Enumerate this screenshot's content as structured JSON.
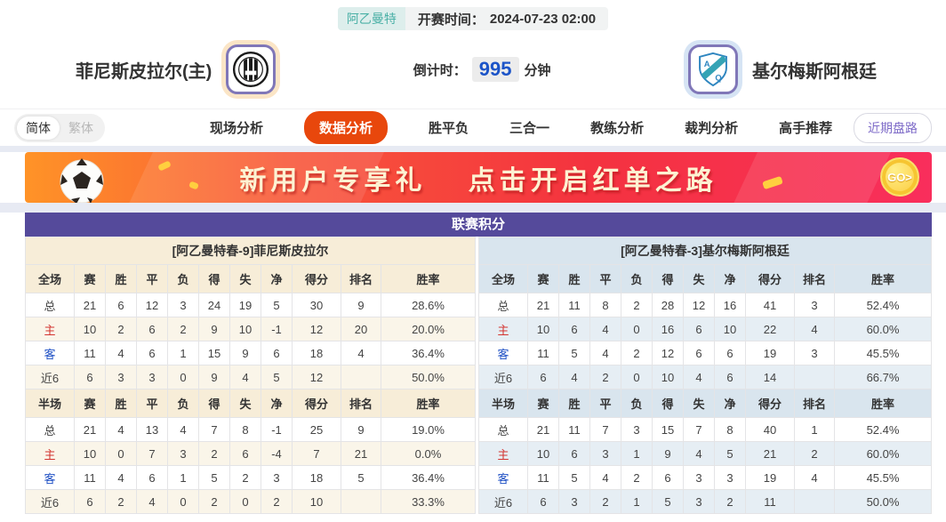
{
  "meta": {
    "league_badge": "阿乙曼特",
    "kickoff_label": "开赛时间：",
    "kickoff_time": "2024-07-23 02:00",
    "countdown_label": "倒计时：",
    "countdown_value": "995",
    "countdown_unit": "分钟"
  },
  "teams": {
    "home": {
      "name": "菲尼斯皮拉尔(主)"
    },
    "away": {
      "name": "基尔梅斯阿根廷"
    }
  },
  "nav": {
    "lang_simplified": "简体",
    "lang_traditional": "繁体",
    "tabs": [
      "现场分析",
      "数据分析",
      "胜平负",
      "三合一",
      "教练分析",
      "裁判分析",
      "高手推荐"
    ],
    "active_index": 1,
    "recent_button": "近期盘路"
  },
  "banner": {
    "headline_1": "新用户专享礼",
    "headline_2": "点击开启红单之路",
    "go_label": "GO>"
  },
  "league_table": {
    "title": "联赛积分",
    "panels": [
      {
        "side": "home",
        "header": "[阿乙曼特春-9]菲尼斯皮拉尔",
        "sections": [
          {
            "label": "全场",
            "columns": [
              "赛",
              "胜",
              "平",
              "负",
              "得",
              "失",
              "净",
              "得分",
              "排名",
              "胜率"
            ],
            "rows": [
              {
                "label": "总",
                "values": [
                  "21",
                  "6",
                  "12",
                  "3",
                  "24",
                  "19",
                  "5",
                  "30",
                  "9",
                  "28.6%"
                ]
              },
              {
                "label": "主",
                "values": [
                  "10",
                  "2",
                  "6",
                  "2",
                  "9",
                  "10",
                  "-1",
                  "12",
                  "20",
                  "20.0%"
                ]
              },
              {
                "label": "客",
                "values": [
                  "11",
                  "4",
                  "6",
                  "1",
                  "15",
                  "9",
                  "6",
                  "18",
                  "4",
                  "36.4%"
                ]
              },
              {
                "label": "近6",
                "values": [
                  "6",
                  "3",
                  "3",
                  "0",
                  "9",
                  "4",
                  "5",
                  "12",
                  "",
                  "50.0%"
                ]
              }
            ]
          },
          {
            "label": "半场",
            "columns": [
              "赛",
              "胜",
              "平",
              "负",
              "得",
              "失",
              "净",
              "得分",
              "排名",
              "胜率"
            ],
            "rows": [
              {
                "label": "总",
                "values": [
                  "21",
                  "4",
                  "13",
                  "4",
                  "7",
                  "8",
                  "-1",
                  "25",
                  "9",
                  "19.0%"
                ]
              },
              {
                "label": "主",
                "values": [
                  "10",
                  "0",
                  "7",
                  "3",
                  "2",
                  "6",
                  "-4",
                  "7",
                  "21",
                  "0.0%"
                ]
              },
              {
                "label": "客",
                "values": [
                  "11",
                  "4",
                  "6",
                  "1",
                  "5",
                  "2",
                  "3",
                  "18",
                  "5",
                  "36.4%"
                ]
              },
              {
                "label": "近6",
                "values": [
                  "6",
                  "2",
                  "4",
                  "0",
                  "2",
                  "0",
                  "2",
                  "10",
                  "",
                  "33.3%"
                ]
              }
            ]
          }
        ]
      },
      {
        "side": "away",
        "header": "[阿乙曼特春-3]基尔梅斯阿根廷",
        "sections": [
          {
            "label": "全场",
            "columns": [
              "赛",
              "胜",
              "平",
              "负",
              "得",
              "失",
              "净",
              "得分",
              "排名",
              "胜率"
            ],
            "rows": [
              {
                "label": "总",
                "values": [
                  "21",
                  "11",
                  "8",
                  "2",
                  "28",
                  "12",
                  "16",
                  "41",
                  "3",
                  "52.4%"
                ]
              },
              {
                "label": "主",
                "values": [
                  "10",
                  "6",
                  "4",
                  "0",
                  "16",
                  "6",
                  "10",
                  "22",
                  "4",
                  "60.0%"
                ]
              },
              {
                "label": "客",
                "values": [
                  "11",
                  "5",
                  "4",
                  "2",
                  "12",
                  "6",
                  "6",
                  "19",
                  "3",
                  "45.5%"
                ]
              },
              {
                "label": "近6",
                "values": [
                  "6",
                  "4",
                  "2",
                  "0",
                  "10",
                  "4",
                  "6",
                  "14",
                  "",
                  "66.7%"
                ]
              }
            ]
          },
          {
            "label": "半场",
            "columns": [
              "赛",
              "胜",
              "平",
              "负",
              "得",
              "失",
              "净",
              "得分",
              "排名",
              "胜率"
            ],
            "rows": [
              {
                "label": "总",
                "values": [
                  "21",
                  "11",
                  "7",
                  "3",
                  "15",
                  "7",
                  "8",
                  "40",
                  "1",
                  "52.4%"
                ]
              },
              {
                "label": "主",
                "values": [
                  "10",
                  "6",
                  "3",
                  "1",
                  "9",
                  "4",
                  "5",
                  "21",
                  "2",
                  "60.0%"
                ]
              },
              {
                "label": "客",
                "values": [
                  "11",
                  "5",
                  "4",
                  "2",
                  "6",
                  "3",
                  "3",
                  "19",
                  "4",
                  "45.5%"
                ]
              },
              {
                "label": "近6",
                "values": [
                  "6",
                  "3",
                  "2",
                  "1",
                  "5",
                  "3",
                  "2",
                  "11",
                  "",
                  "50.0%"
                ]
              }
            ]
          }
        ]
      }
    ]
  },
  "colors": {
    "accent_orange": "#e8470c",
    "title_purple": "#554a9b",
    "badge_teal": "#4ab0a6",
    "countdown_blue": "#1c54c8",
    "home_label_red": "#d33430",
    "away_label_blue": "#1e4fc4",
    "home_panel_cream": "#f7edd8",
    "away_panel_blue": "#d9e5ee",
    "banner_gradient_start": "#ff9327",
    "banner_gradient_end": "#f92e5c"
  }
}
